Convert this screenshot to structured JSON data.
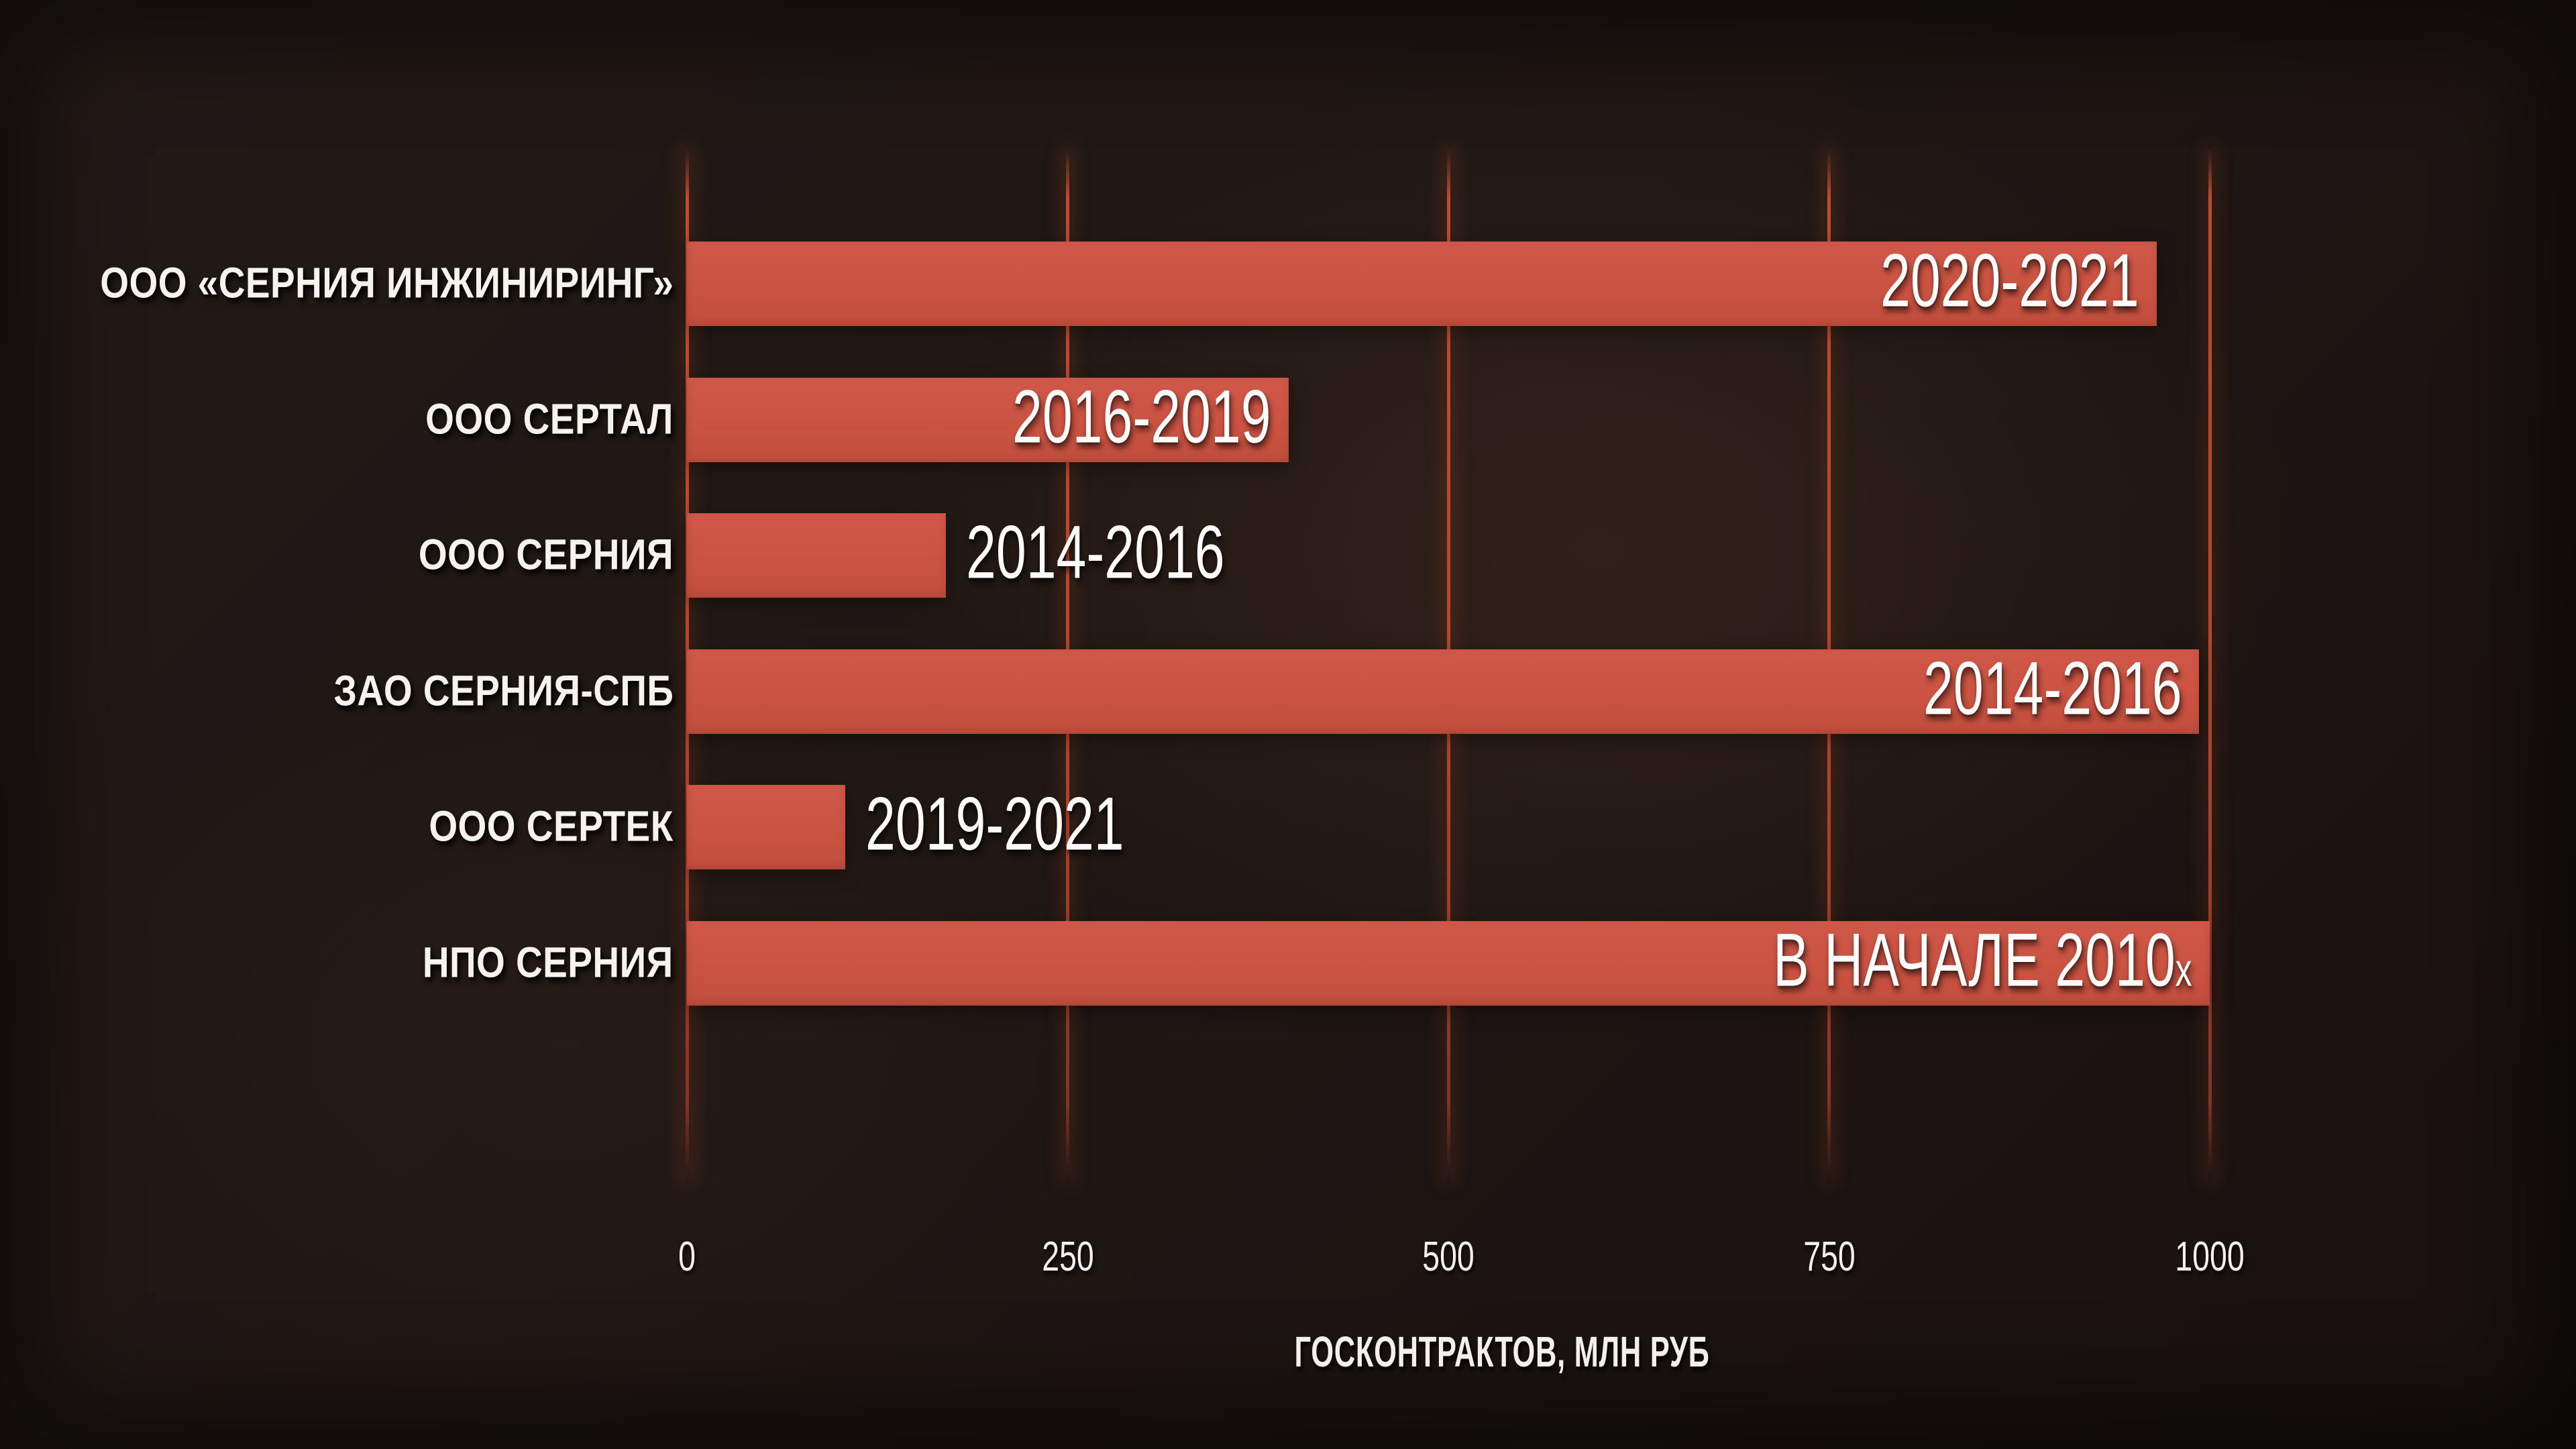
{
  "colors": {
    "background": "#1f1714",
    "bar": "#cb5342",
    "gridline": "#b84e38",
    "text": "#f5f1ed"
  },
  "chart_data": {
    "type": "bar",
    "orientation": "horizontal",
    "title": "",
    "xlabel": "ГОСКОНТРАКТОВ, МЛН РУБ",
    "ylabel": "",
    "xlim": [
      0,
      1000
    ],
    "x_ticks": [
      "0",
      "250",
      "500",
      "750",
      "1000"
    ],
    "grid": true,
    "legend": false,
    "categories": [
      "ООО «СЕРНИЯ ИНЖИНИРИНГ»",
      "ООО СЕРТАЛ",
      "ООО СЕРНИЯ",
      "ЗАО СЕРНИЯ-СПБ",
      "ООО СЕРТЕК",
      "НПО СЕРНИЯ"
    ],
    "values": [
      965,
      395,
      170,
      993,
      104,
      1000
    ],
    "bars": [
      {
        "company": "ООО «СЕРНИЯ ИНЖИНИРИНГ»",
        "value_mln_rub": 965,
        "label": "2020-2021",
        "label_suffix": "",
        "label_placement": "inside"
      },
      {
        "company": "ООО СЕРТАЛ",
        "value_mln_rub": 395,
        "label": "2016-2019",
        "label_suffix": "",
        "label_placement": "inside"
      },
      {
        "company": "ООО СЕРНИЯ",
        "value_mln_rub": 170,
        "label": "2014-2016",
        "label_suffix": "",
        "label_placement": "outside"
      },
      {
        "company": "ЗАО СЕРНИЯ-СПБ",
        "value_mln_rub": 993,
        "label": "2014-2016",
        "label_suffix": "",
        "label_placement": "inside"
      },
      {
        "company": "ООО СЕРТЕК",
        "value_mln_rub": 104,
        "label": "2019-2021",
        "label_suffix": "",
        "label_placement": "outside"
      },
      {
        "company": "НПО СЕРНИЯ",
        "value_mln_rub": 1000,
        "label": "В НАЧАЛЕ 2010",
        "label_suffix": "х",
        "label_placement": "inside"
      }
    ]
  }
}
